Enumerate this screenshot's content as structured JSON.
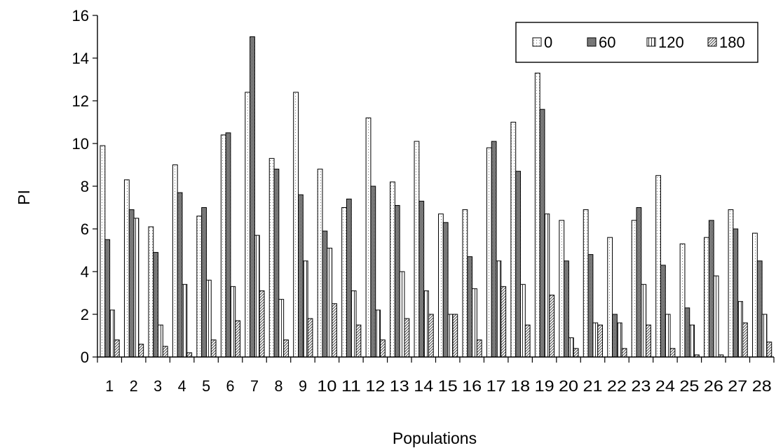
{
  "chart_data": {
    "type": "bar",
    "xlabel": "Populations",
    "ylabel": "PI",
    "ylim": [
      0,
      16
    ],
    "yticks": [
      "0",
      "2",
      "4",
      "6",
      "8",
      "10",
      "12",
      "14",
      "16"
    ],
    "grid": false,
    "legend_position": "top-right",
    "categories": [
      "1",
      "2",
      "3",
      "4",
      "5",
      "6",
      "7",
      "8",
      "9",
      "10",
      "11",
      "12",
      "13",
      "14",
      "15",
      "16",
      "17",
      "18",
      "19",
      "20",
      "21",
      "22",
      "23",
      "24",
      "25",
      "26",
      "27",
      "28"
    ],
    "series": [
      {
        "name": "0",
        "pattern": "dots-light",
        "values": [
          9.9,
          8.3,
          6.1,
          9.0,
          6.6,
          10.4,
          12.4,
          9.3,
          12.4,
          8.8,
          7.0,
          11.2,
          8.2,
          10.1,
          6.7,
          6.9,
          9.8,
          11.0,
          13.3,
          6.4,
          6.9,
          5.6,
          6.4,
          8.5,
          5.3,
          5.6,
          6.9,
          5.8
        ]
      },
      {
        "name": "60",
        "pattern": "dots-dense",
        "values": [
          5.5,
          6.9,
          4.9,
          7.7,
          7.0,
          10.5,
          15.0,
          8.8,
          7.6,
          5.9,
          7.4,
          8.0,
          7.1,
          7.3,
          6.3,
          4.7,
          10.1,
          8.7,
          11.6,
          4.5,
          4.8,
          2.0,
          7.0,
          4.3,
          2.3,
          6.4,
          6.0,
          4.5
        ]
      },
      {
        "name": "120",
        "pattern": "vlines",
        "values": [
          2.2,
          6.5,
          1.5,
          3.4,
          3.6,
          3.3,
          5.7,
          2.7,
          4.5,
          5.1,
          3.1,
          2.2,
          4.0,
          3.1,
          2.0,
          3.2,
          4.5,
          3.4,
          6.7,
          0.9,
          1.6,
          1.6,
          3.4,
          2.0,
          1.5,
          3.8,
          2.6,
          2.0
        ]
      },
      {
        "name": "180",
        "pattern": "hatch",
        "values": [
          0.8,
          0.6,
          0.5,
          0.2,
          0.8,
          1.7,
          3.1,
          0.8,
          1.8,
          2.5,
          1.5,
          0.8,
          1.8,
          2.0,
          2.0,
          0.8,
          3.3,
          1.5,
          2.9,
          0.4,
          1.5,
          0.4,
          1.5,
          0.4,
          0.1,
          0.1,
          1.6,
          0.7
        ]
      }
    ]
  }
}
